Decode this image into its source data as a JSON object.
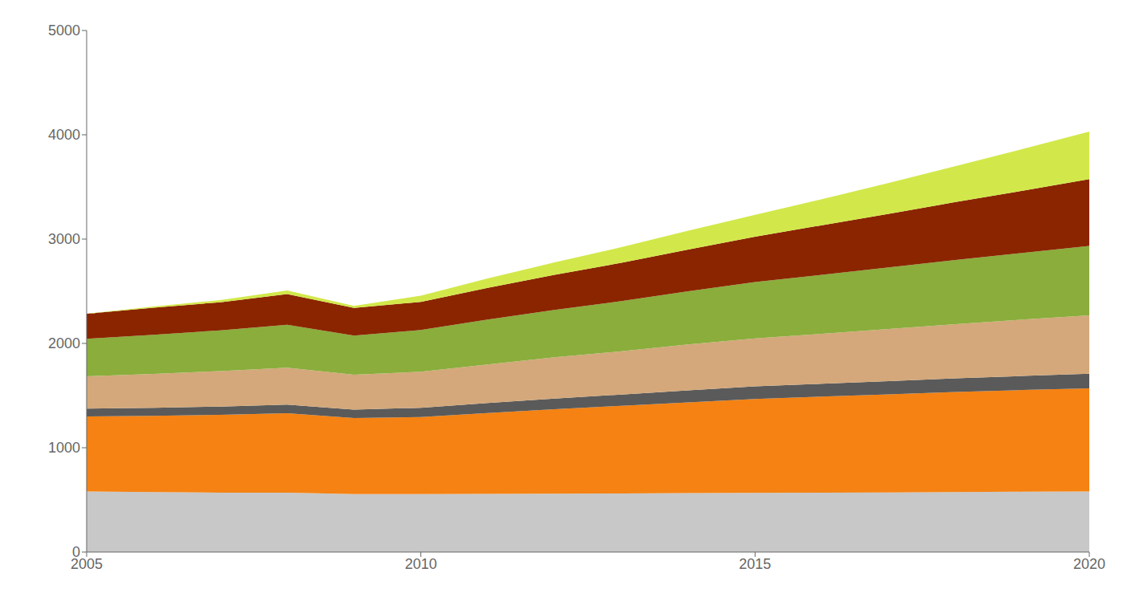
{
  "chart_data": {
    "type": "area",
    "stacked": true,
    "x": [
      2005,
      2006,
      2007,
      2008,
      2009,
      2010,
      2011,
      2012,
      2013,
      2014,
      2015,
      2016,
      2017,
      2018,
      2019,
      2020
    ],
    "series": [
      {
        "color": "#c8c8c8",
        "values": [
          580,
          575,
          570,
          570,
          555,
          555,
          558,
          560,
          562,
          565,
          568,
          570,
          572,
          575,
          578,
          580
        ]
      },
      {
        "color": "#f58212",
        "values": [
          720,
          730,
          745,
          760,
          730,
          740,
          775,
          810,
          840,
          870,
          900,
          920,
          940,
          960,
          975,
          990
        ]
      },
      {
        "color": "#5a5a5a",
        "values": [
          75,
          78,
          80,
          83,
          80,
          88,
          95,
          102,
          108,
          115,
          120,
          123,
          126,
          130,
          135,
          140
        ]
      },
      {
        "color": "#d4a87a",
        "values": [
          310,
          325,
          340,
          355,
          335,
          345,
          370,
          395,
          415,
          440,
          460,
          480,
          500,
          520,
          540,
          560
        ]
      },
      {
        "color": "#8aad3c",
        "values": [
          360,
          375,
          390,
          410,
          375,
          400,
          430,
          455,
          480,
          510,
          540,
          565,
          590,
          615,
          640,
          665
        ]
      },
      {
        "color": "#8b2500",
        "values": [
          240,
          260,
          270,
          295,
          265,
          270,
          305,
          335,
          368,
          400,
          435,
          475,
          515,
          555,
          595,
          640
        ]
      },
      {
        "color": "#d2e84a",
        "values": [
          0,
          10,
          20,
          35,
          20,
          60,
          90,
          120,
          150,
          180,
          210,
          250,
          295,
          345,
          400,
          455
        ]
      }
    ],
    "xlim": [
      2005,
      2020
    ],
    "xticks": [
      2005,
      2010,
      2015,
      2020
    ],
    "ylim": [
      0,
      5000
    ],
    "yticks": [
      0,
      1000,
      2000,
      3000,
      4000,
      5000
    ],
    "grid": false
  }
}
